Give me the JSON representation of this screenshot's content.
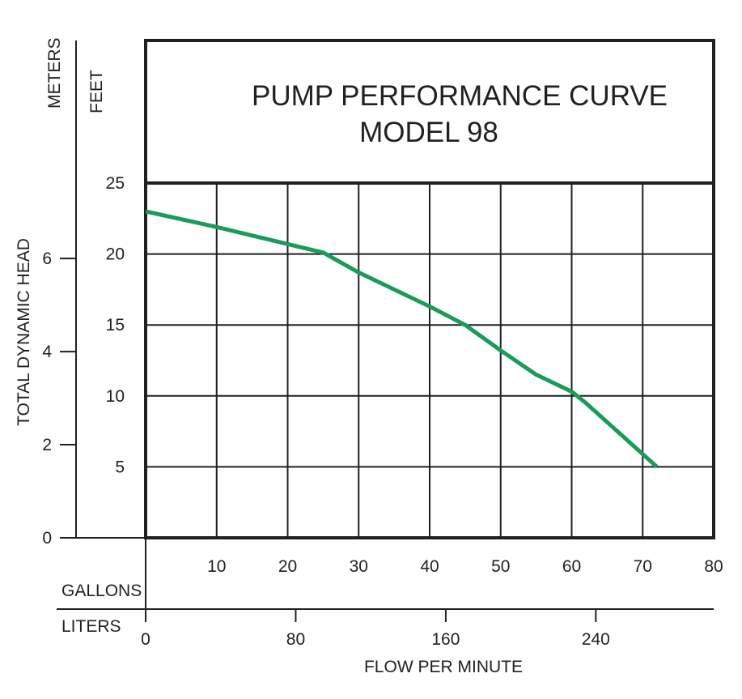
{
  "chart_data": {
    "type": "line",
    "title": "PUMP PERFORMANCE CURVE",
    "subtitle": "MODEL 98",
    "ylabel": "TOTAL DYNAMIC HEAD",
    "xlabel": "FLOW PER MINUTE",
    "y_feet": {
      "label": "FEET",
      "ticks": [
        "5",
        "10",
        "15",
        "20",
        "25"
      ],
      "ylim": [
        0,
        25
      ]
    },
    "y_meters": {
      "label": "METERS",
      "ticks": [
        "0",
        "2",
        "4",
        "6"
      ]
    },
    "x_gallons": {
      "label": "GALLONS",
      "ticks": [
        "10",
        "20",
        "30",
        "40",
        "50",
        "60",
        "70",
        "80"
      ],
      "xlim": [
        0,
        80
      ]
    },
    "x_liters": {
      "label": "LITERS",
      "ticks": [
        "0",
        "80",
        "160",
        "240"
      ]
    },
    "grid": true,
    "series": [
      {
        "color": "#1a9b5c",
        "x": [
          0,
          10,
          20,
          25,
          30,
          40,
          45,
          50,
          55,
          60,
          62,
          72
        ],
        "y": [
          23,
          21.9,
          20.7,
          20.1,
          18.7,
          16.3,
          15.0,
          13.2,
          11.5,
          10.3,
          9.5,
          5.0
        ]
      }
    ]
  }
}
